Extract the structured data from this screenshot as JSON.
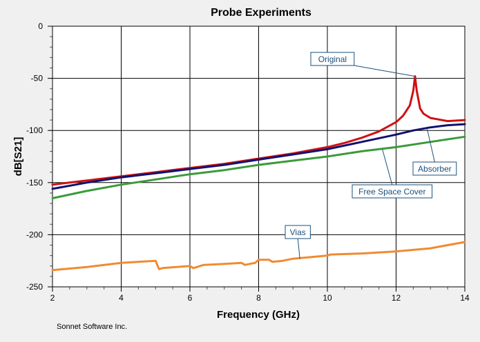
{
  "footer": "Sonnet Software Inc.",
  "chart_data": {
    "type": "line",
    "title": "Probe Experiments",
    "xlabel": "Frequency (GHz)",
    "ylabel": "dB[S21]",
    "xlim": [
      2,
      14
    ],
    "ylim": [
      -250,
      0
    ],
    "xticks": [
      2,
      4,
      6,
      8,
      10,
      12,
      14
    ],
    "yticks": [
      0,
      -50,
      -100,
      -150,
      -200,
      -250
    ],
    "grid": true,
    "legend": "none",
    "series": [
      {
        "name": "Original",
        "color": "#d01010",
        "x": [
          2,
          3,
          4,
          5,
          6,
          7,
          8,
          9,
          10,
          10.5,
          11,
          11.5,
          12,
          12.2,
          12.4,
          12.5,
          12.55,
          12.6,
          12.7,
          12.8,
          13,
          13.5,
          14
        ],
        "y": [
          -152,
          -148,
          -144,
          -140,
          -136,
          -132,
          -127,
          -122,
          -116,
          -112,
          -107,
          -101,
          -92,
          -86,
          -76,
          -62,
          -48,
          -62,
          -79,
          -84,
          -88,
          -91,
          -90
        ]
      },
      {
        "name": "Absorber",
        "color": "#101070",
        "x": [
          2,
          3,
          4,
          5,
          6,
          7,
          8,
          9,
          10,
          11,
          12,
          12.5,
          13,
          13.5,
          14
        ],
        "y": [
          -156,
          -150,
          -145,
          -141,
          -137,
          -133,
          -128,
          -123,
          -118,
          -111,
          -104,
          -100,
          -97,
          -95,
          -94
        ]
      },
      {
        "name": "Free Space Cover",
        "color": "#3a9a3a",
        "x": [
          2,
          3,
          4,
          5,
          6,
          7,
          8,
          9,
          10,
          11,
          12,
          13,
          14
        ],
        "y": [
          -165,
          -158,
          -152,
          -147,
          -142,
          -138,
          -133,
          -129,
          -125,
          -120,
          -116,
          -111,
          -106
        ]
      },
      {
        "name": "Vias",
        "color": "#f08a30",
        "x": [
          2,
          3,
          4,
          5,
          5.1,
          5.2,
          6,
          6.1,
          6.4,
          7,
          7.5,
          7.6,
          7.9,
          8,
          8.3,
          8.4,
          8.7,
          9,
          10,
          10.1,
          11,
          12,
          13,
          14
        ],
        "y": [
          -234,
          -231,
          -227,
          -225,
          -233,
          -232,
          -230,
          -232,
          -229,
          -228,
          -227,
          -229,
          -227,
          -224,
          -224,
          -226,
          -225,
          -223,
          -220,
          -219,
          -218,
          -216,
          -213,
          -207
        ]
      }
    ],
    "annotations": [
      {
        "text": "Original",
        "series": "Original",
        "at": [
          12.55,
          -48
        ]
      },
      {
        "text": "Absorber",
        "series": "Absorber",
        "at": [
          12.9,
          -98
        ]
      },
      {
        "text": "Free Space Cover",
        "series": "Free Space Cover",
        "at": [
          11.6,
          -118
        ]
      },
      {
        "text": "Vias",
        "series": "Vias",
        "at": [
          9.2,
          -223
        ]
      }
    ]
  }
}
